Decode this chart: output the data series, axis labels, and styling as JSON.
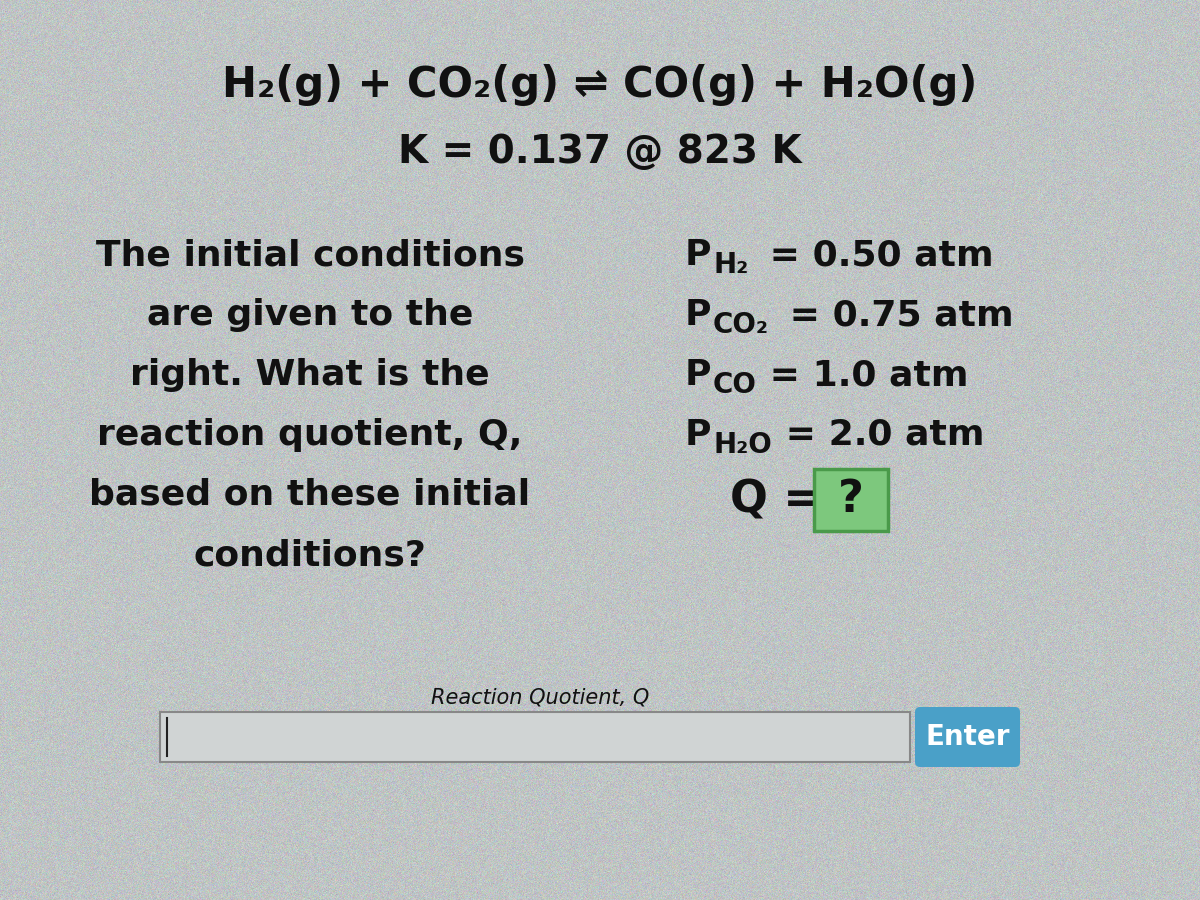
{
  "background_color": "#bfc3c3",
  "noise_alpha": 0.08,
  "reaction_line": "H₂(g) + CO₂(g) ⇌ CO(g) + H₂O(g)",
  "k_line": "K = 0.137 @ 823 K",
  "left_text_lines": [
    "The initial conditions",
    "are given to the",
    "right. What is the",
    "reaction quotient, Q,",
    "based on these initial",
    "conditions?"
  ],
  "right_conditions": [
    {
      "label": "P",
      "sub": "H₂",
      "value": " = 0.50 atm"
    },
    {
      "label": "P",
      "sub": "CO₂",
      "value": " = 0.75 atm"
    },
    {
      "label": "P",
      "sub": "CO",
      "value": " = 1.0 atm"
    },
    {
      "label": "P",
      "sub": "H₂O",
      "value": " = 2.0 atm"
    }
  ],
  "q_label": "Q = ",
  "q_box_text": "?",
  "q_box_color": "#7dc87d",
  "q_box_border": "#4a9a4a",
  "input_label": "Reaction Quotient, Q",
  "enter_button_text": "Enter",
  "enter_button_color": "#4aa0c8",
  "text_color": "#111111",
  "font_size_reaction": 30,
  "font_size_k": 28,
  "font_size_body": 26,
  "font_size_conditions": 26,
  "font_size_q": 28,
  "font_size_input_label": 15,
  "font_size_enter": 20
}
